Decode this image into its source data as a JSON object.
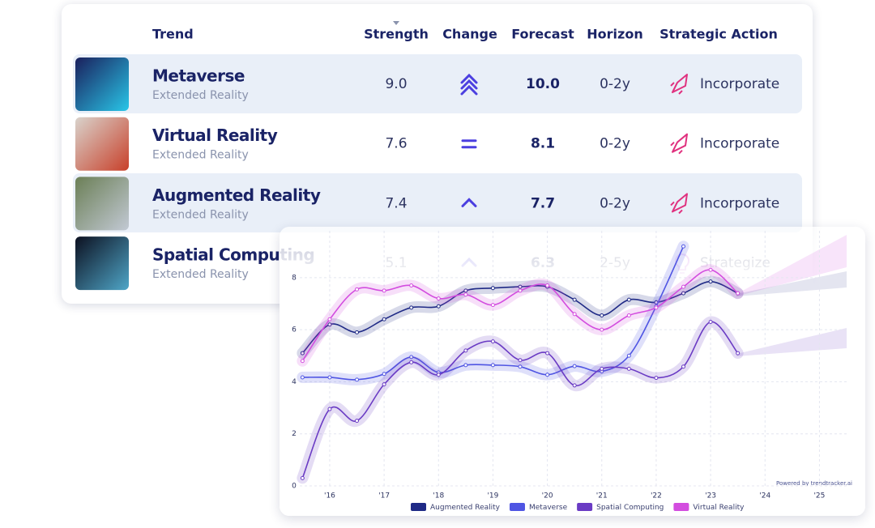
{
  "table": {
    "columns": [
      "Trend",
      "Strength",
      "Change",
      "Forecast",
      "Horizon",
      "Strategic Action"
    ],
    "rows": [
      {
        "name": "Metaverse",
        "category": "Extended Reality",
        "strength": "9.0",
        "forecast": "10.0",
        "horizon": "0-2y",
        "action": "Incorporate"
      },
      {
        "name": "Virtual Reality",
        "category": "Extended Reality",
        "strength": "7.6",
        "forecast": "8.1",
        "horizon": "0-2y",
        "action": "Incorporate"
      },
      {
        "name": "Augmented Reality",
        "category": "Extended Reality",
        "strength": "7.4",
        "forecast": "7.7",
        "horizon": "0-2y",
        "action": "Incorporate"
      },
      {
        "name": "Spatial Computing",
        "category": "Extended Reality",
        "strength": "5.1",
        "forecast": "6.3",
        "horizon": "2-5y",
        "action": "Strategize"
      }
    ]
  },
  "chart_data": {
    "type": "line",
    "x": [
      2015.5,
      2016,
      2016.5,
      2017,
      2017.5,
      2018,
      2018.5,
      2019,
      2019.5,
      2020,
      2020.5,
      2021,
      2021.5,
      2022,
      2022.5,
      2023,
      2023.5
    ],
    "series": [
      {
        "name": "Augmented Reality",
        "color": "#1f2a86",
        "values": [
          5.1,
          6.2,
          5.9,
          6.4,
          6.85,
          6.9,
          7.5,
          7.6,
          7.65,
          7.65,
          7.15,
          6.55,
          7.15,
          7.05,
          7.4,
          7.85,
          7.4
        ]
      },
      {
        "name": "Metaverse",
        "color": "#4f55e3",
        "values": [
          4.17,
          4.17,
          4.08,
          4.3,
          4.95,
          4.36,
          4.64,
          4.64,
          4.58,
          4.27,
          4.6,
          4.4,
          5.0,
          6.9,
          9.2,
          null,
          null
        ]
      },
      {
        "name": "Spatial Computing",
        "color": "#6a3bc4",
        "values": [
          0.3,
          2.95,
          2.5,
          3.9,
          4.75,
          4.27,
          5.2,
          5.55,
          4.83,
          5.1,
          3.86,
          4.5,
          4.5,
          4.15,
          4.58,
          6.3,
          5.1
        ]
      },
      {
        "name": "Virtual Reality",
        "color": "#d34ddf",
        "values": [
          4.8,
          6.4,
          7.55,
          7.5,
          7.7,
          7.2,
          7.35,
          6.95,
          7.5,
          7.7,
          6.6,
          6.0,
          6.55,
          6.85,
          7.65,
          8.3,
          7.4
        ]
      }
    ],
    "xlim": [
      2015.45,
      2025.5
    ],
    "xticks": [
      {
        "value": 2016,
        "label": "'16"
      },
      {
        "value": 2017,
        "label": "'17"
      },
      {
        "value": 2018,
        "label": "'18"
      },
      {
        "value": 2019,
        "label": "'19"
      },
      {
        "value": 2020,
        "label": "'20"
      },
      {
        "value": 2021,
        "label": "'21"
      },
      {
        "value": 2022,
        "label": "'22"
      },
      {
        "value": 2023,
        "label": "'23"
      },
      {
        "value": 2024,
        "label": "'24"
      },
      {
        "value": 2025,
        "label": "'25"
      }
    ],
    "ylim": [
      0,
      9.8
    ],
    "yticks": [
      0,
      2,
      4,
      6,
      8
    ],
    "grid": true,
    "legend": "bottom",
    "credit": "Powered by trendtracker.ai"
  }
}
